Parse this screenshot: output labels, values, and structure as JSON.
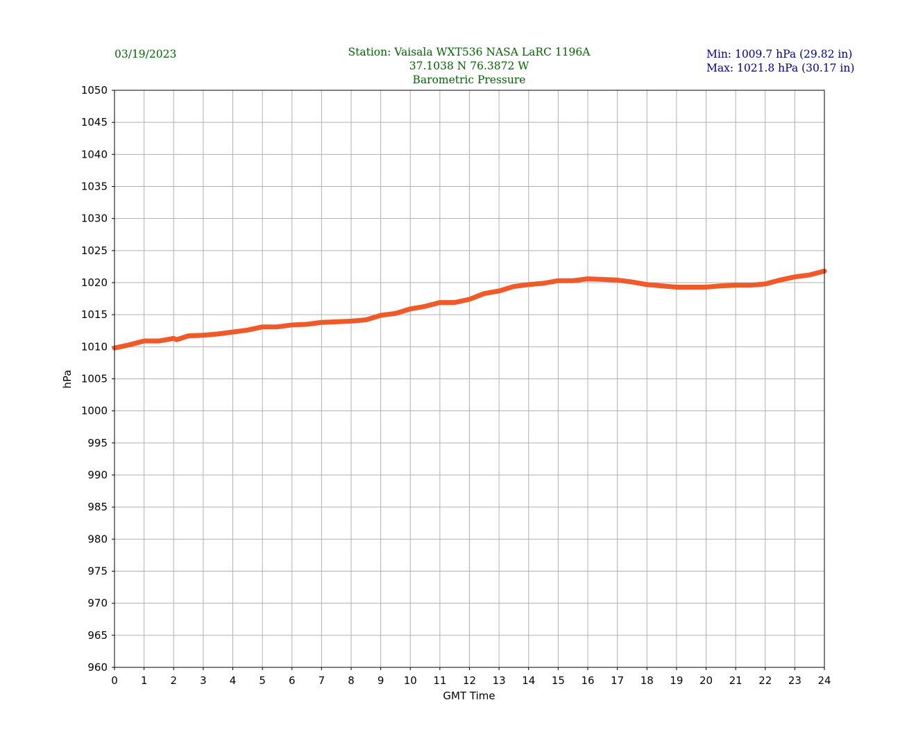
{
  "header": {
    "date": "03/19/2023",
    "title_lines": [
      "Station:  Vaisala WXT536  NASA LaRC 1196A",
      "37.1038 N 76.3872 W",
      "Barometric Pressure"
    ],
    "min": "Min: 1009.7 hPa (29.82 in)",
    "max": "Max: 1021.8 hPa (30.17 in)"
  },
  "chart_data": {
    "type": "line",
    "title": "Barometric Pressure",
    "xlabel": "GMT Time",
    "ylabel": "hPa",
    "xlim": [
      0,
      24
    ],
    "ylim": [
      960,
      1050
    ],
    "xticks": [
      0,
      1,
      2,
      3,
      4,
      5,
      6,
      7,
      8,
      9,
      10,
      11,
      12,
      13,
      14,
      15,
      16,
      17,
      18,
      19,
      20,
      21,
      22,
      23,
      24
    ],
    "yticks": [
      960,
      965,
      970,
      975,
      980,
      985,
      990,
      995,
      1000,
      1005,
      1010,
      1015,
      1020,
      1025,
      1030,
      1035,
      1040,
      1045,
      1050
    ],
    "grid": true,
    "series": [
      {
        "color": "#f05a28",
        "x": [
          0,
          0.5,
          1,
          1.5,
          2,
          2.1,
          2.5,
          3,
          3.5,
          4,
          4.5,
          5,
          5.5,
          6,
          6.5,
          7,
          7.5,
          8,
          8.5,
          9,
          9.5,
          10,
          10.5,
          11,
          11.5,
          12,
          12.5,
          13,
          13.5,
          14,
          14.5,
          15,
          15.5,
          16,
          16.5,
          17,
          17.5,
          18,
          18.5,
          19,
          19.5,
          20,
          20.5,
          21,
          21.5,
          22,
          22.5,
          23,
          23.5,
          24
        ],
        "y": [
          1009.8,
          1010.3,
          1010.9,
          1010.9,
          1011.3,
          1011.1,
          1011.7,
          1011.8,
          1012.0,
          1012.3,
          1012.6,
          1013.1,
          1013.1,
          1013.4,
          1013.5,
          1013.8,
          1013.9,
          1014.0,
          1014.2,
          1014.9,
          1015.2,
          1015.9,
          1016.3,
          1016.9,
          1016.9,
          1017.4,
          1018.3,
          1018.7,
          1019.4,
          1019.7,
          1019.9,
          1020.3,
          1020.3,
          1020.6,
          1020.5,
          1020.4,
          1020.1,
          1019.7,
          1019.5,
          1019.3,
          1019.3,
          1019.3,
          1019.5,
          1019.6,
          1019.6,
          1019.8,
          1020.4,
          1020.9,
          1021.2,
          1021.8
        ]
      }
    ]
  }
}
